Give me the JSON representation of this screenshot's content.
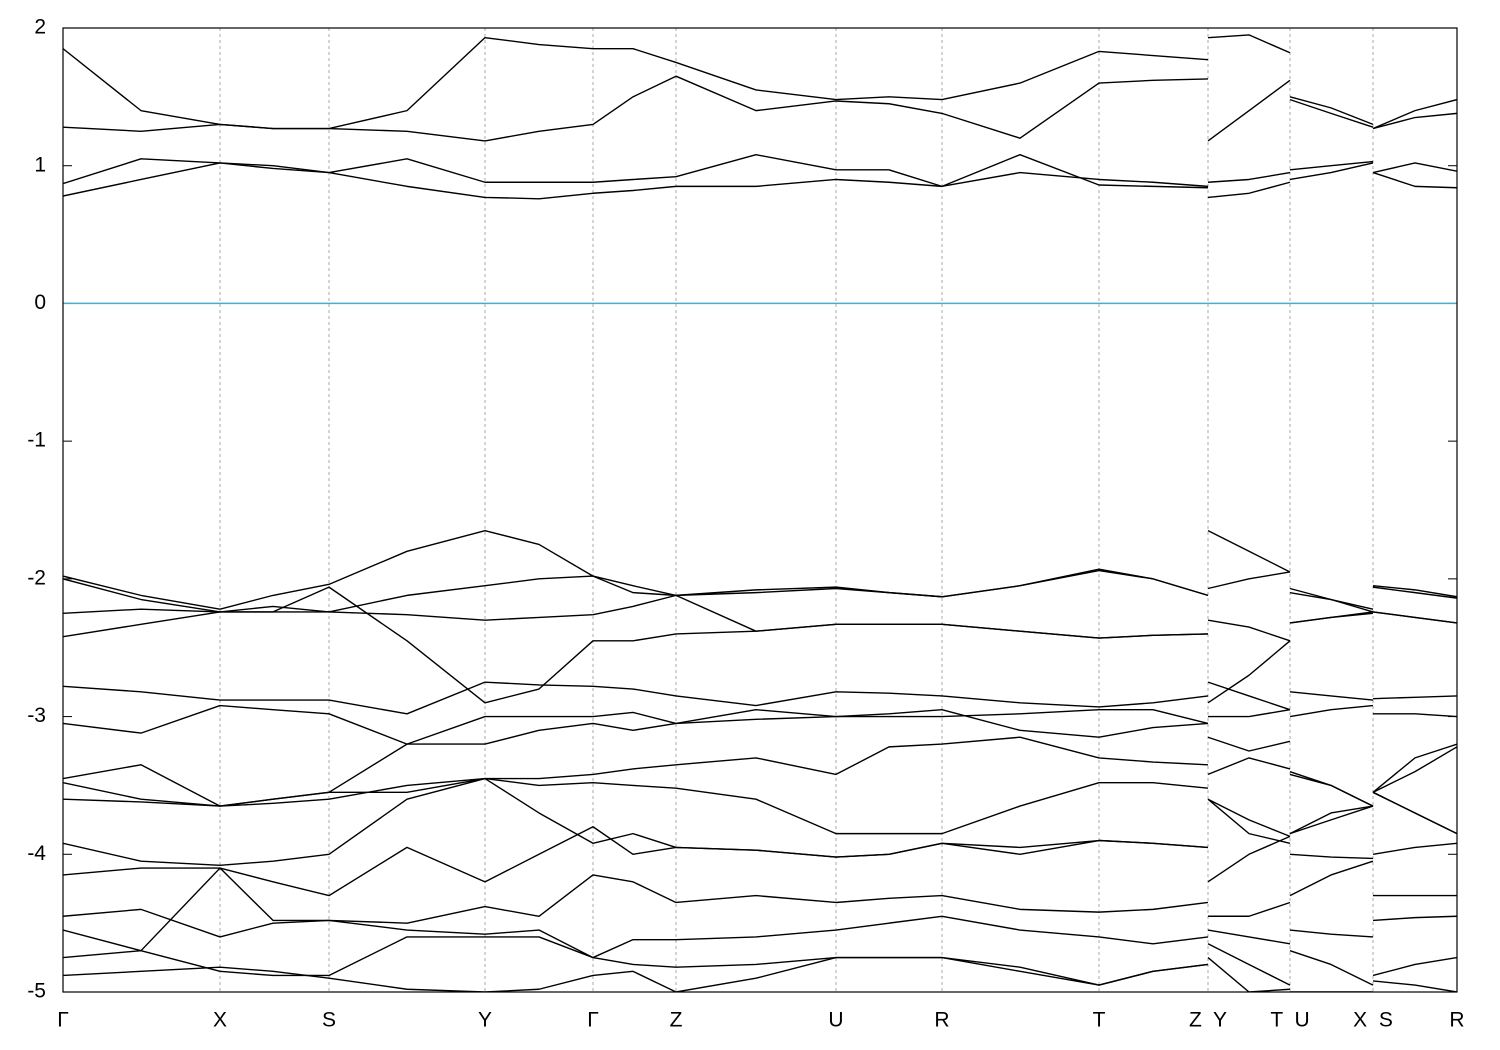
{
  "chart_data": {
    "type": "line",
    "color": "#000000",
    "grid": true,
    "grid_color": "#aaaaaa",
    "hline": {
      "value": 0,
      "color": "#4aaecb"
    },
    "xlim": [
      0,
      13.94
    ],
    "ylim": [
      -5,
      2
    ],
    "xticks": [
      {
        "value": 0,
        "label": "Γ"
      },
      {
        "value": 1.57,
        "label": "X"
      },
      {
        "value": 2.66,
        "label": "S"
      },
      {
        "value": 4.22,
        "label": "Y"
      },
      {
        "value": 5.3,
        "label": "Γ"
      },
      {
        "value": 6.13,
        "label": "Z"
      },
      {
        "value": 7.73,
        "label": "U"
      },
      {
        "value": 8.79,
        "label": "R"
      },
      {
        "value": 10.36,
        "label": "T"
      },
      {
        "value": 11.45,
        "label": "Z  Y"
      },
      {
        "value": 12.27,
        "label": "T  U"
      },
      {
        "value": 13.1,
        "label": "X  S"
      },
      {
        "value": 13.94,
        "label": "R"
      }
    ],
    "yticks": [
      -5,
      -4,
      -3,
      -2,
      -1,
      0,
      1,
      2
    ],
    "x": [
      0,
      0.78,
      1.57,
      2.1,
      2.66,
      3.44,
      4.22,
      4.76,
      5.3,
      5.7,
      6.13,
      6.93,
      7.73,
      8.26,
      8.79,
      9.57,
      10.36,
      10.9,
      11.45,
      11.45,
      11.45,
      11.86,
      12.27,
      12.27,
      12.27,
      12.68,
      13.1,
      13.1,
      13.1,
      13.52,
      13.94
    ],
    "series": [
      {
        "values": [
          0.78,
          0.9,
          1.02,
          0.98,
          0.95,
          0.85,
          0.77,
          0.76,
          0.8,
          0.82,
          0.85,
          0.85,
          0.9,
          0.88,
          0.85,
          0.95,
          0.9,
          0.88,
          0.85,
          null,
          0.77,
          0.8,
          0.88,
          null,
          0.9,
          0.95,
          1.02,
          null,
          0.95,
          0.85,
          0.84
        ]
      },
      {
        "values": [
          0.87,
          1.05,
          1.02,
          1.0,
          0.95,
          1.05,
          0.88,
          0.88,
          0.88,
          0.9,
          0.92,
          1.08,
          0.97,
          0.97,
          0.85,
          1.08,
          0.86,
          0.85,
          0.84,
          null,
          0.88,
          0.9,
          0.95,
          null,
          0.97,
          1.0,
          1.03,
          null,
          0.95,
          1.02,
          0.96
        ]
      },
      {
        "values": [
          1.28,
          1.25,
          1.3,
          1.27,
          1.27,
          1.25,
          1.18,
          1.25,
          1.3,
          1.5,
          1.65,
          1.4,
          1.47,
          1.45,
          1.38,
          1.2,
          1.6,
          1.62,
          1.63,
          null,
          1.18,
          1.4,
          1.62,
          null,
          1.48,
          1.38,
          1.28,
          null,
          1.27,
          1.35,
          1.38
        ]
      },
      {
        "values": [
          1.85,
          1.4,
          1.3,
          1.27,
          1.27,
          1.4,
          1.93,
          1.88,
          1.85,
          1.85,
          1.75,
          1.55,
          1.48,
          1.5,
          1.48,
          1.6,
          1.83,
          1.8,
          1.77,
          null,
          1.93,
          1.95,
          1.82,
          null,
          1.5,
          1.42,
          1.3,
          null,
          1.27,
          1.4,
          1.48
        ]
      },
      {
        "values": [
          -1.98,
          -2.12,
          -2.22,
          -2.12,
          -2.04,
          -1.8,
          -1.65,
          -1.75,
          -1.98,
          -2.1,
          -2.12,
          -2.08,
          -2.06,
          -2.1,
          -2.13,
          -2.05,
          -1.93,
          -2.0,
          -2.12,
          null,
          -1.65,
          -1.8,
          -1.95,
          null,
          -2.07,
          -2.15,
          -2.22,
          null,
          -2.05,
          -2.08,
          -2.13
        ]
      },
      {
        "values": [
          -2.0,
          -2.15,
          -2.24,
          -2.2,
          -2.24,
          -2.12,
          -2.05,
          -2.0,
          -1.98,
          -2.05,
          -2.12,
          -2.1,
          -2.07,
          -2.1,
          -2.13,
          -2.05,
          -1.94,
          -2.0,
          -2.12,
          null,
          -2.07,
          -2.0,
          -1.95,
          null,
          -2.1,
          -2.15,
          -2.24,
          null,
          -2.06,
          -2.1,
          -2.14
        ]
      },
      {
        "values": [
          -2.25,
          -2.22,
          -2.24,
          -2.24,
          -2.24,
          -2.26,
          -2.3,
          -2.28,
          -2.26,
          -2.2,
          -2.12,
          -2.38,
          -2.33,
          -2.33,
          -2.33,
          -2.38,
          -2.43,
          -2.41,
          -2.4,
          null,
          -2.3,
          -2.35,
          -2.45,
          null,
          -2.32,
          -2.28,
          -2.24,
          null,
          -2.24,
          -2.28,
          -2.32
        ]
      },
      {
        "values": [
          -2.42,
          -2.33,
          -2.24,
          -2.24,
          -2.06,
          -2.45,
          -2.9,
          -2.8,
          -2.45,
          -2.45,
          -2.4,
          -2.38,
          -2.33,
          -2.33,
          -2.33,
          -2.38,
          -2.43,
          -2.41,
          -2.4,
          null,
          -2.9,
          -2.7,
          -2.45,
          null,
          -2.32,
          -2.28,
          -2.25,
          null,
          -2.24,
          -2.28,
          -2.32
        ]
      },
      {
        "values": [
          -2.78,
          -2.82,
          -2.88,
          -2.88,
          -2.88,
          -2.98,
          -2.75,
          -2.77,
          -2.78,
          -2.8,
          -2.85,
          -2.92,
          -2.82,
          -2.83,
          -2.85,
          -2.9,
          -2.93,
          -2.9,
          -2.85,
          null,
          -2.75,
          -2.85,
          -2.95,
          null,
          -2.82,
          -2.85,
          -2.88,
          null,
          -2.87,
          -2.86,
          -2.85
        ]
      },
      {
        "values": [
          -3.05,
          -3.12,
          -2.92,
          -2.95,
          -2.98,
          -3.2,
          -3.0,
          -3.0,
          -3.0,
          -2.97,
          -3.05,
          -3.02,
          -3.0,
          -3.0,
          -3.0,
          -2.98,
          -2.95,
          -2.95,
          -3.05,
          null,
          -3.0,
          -3.0,
          -2.95,
          null,
          -3.0,
          -2.95,
          -2.92,
          null,
          -2.98,
          -2.98,
          -3.0
        ]
      },
      {
        "values": [
          -3.45,
          -3.35,
          -3.65,
          -3.6,
          -3.55,
          -3.2,
          -3.2,
          -3.1,
          -3.05,
          -3.1,
          -3.05,
          -2.95,
          -3.0,
          -2.98,
          -2.95,
          -3.1,
          -3.15,
          -3.08,
          -3.05,
          null,
          -3.15,
          -3.25,
          -3.18,
          null,
          -3.4,
          -3.5,
          -3.65,
          null,
          -3.55,
          -3.4,
          -3.22
        ]
      },
      {
        "values": [
          -3.48,
          -3.6,
          -3.65,
          -3.6,
          -3.55,
          -3.55,
          -3.45,
          -3.45,
          -3.42,
          -3.38,
          -3.35,
          -3.3,
          -3.42,
          -3.22,
          -3.2,
          -3.15,
          -3.3,
          -3.33,
          -3.35,
          null,
          -3.42,
          -3.3,
          -3.38,
          null,
          -3.42,
          -3.5,
          -3.65,
          null,
          -3.55,
          -3.7,
          -3.85
        ]
      },
      {
        "values": [
          -3.6,
          -3.62,
          -3.65,
          -3.63,
          -3.6,
          -3.5,
          -3.45,
          -3.5,
          -3.48,
          -3.5,
          -3.52,
          -3.6,
          -3.85,
          -3.85,
          -3.85,
          -3.65,
          -3.48,
          -3.48,
          -3.52,
          null,
          -3.6,
          -3.85,
          -3.92,
          null,
          -3.85,
          -3.75,
          -3.65,
          null,
          -3.55,
          -3.7,
          -3.85
        ]
      },
      {
        "values": [
          -3.92,
          -4.05,
          -4.08,
          -4.05,
          -4.0,
          -3.6,
          -3.45,
          -3.7,
          -3.92,
          -3.85,
          -3.95,
          -3.97,
          -4.02,
          -4.0,
          -3.92,
          -3.95,
          -3.9,
          -3.92,
          -3.95,
          null,
          -4.2,
          -4.0,
          -3.87,
          null,
          -4.0,
          -4.02,
          -4.03,
          null,
          -4.0,
          -3.95,
          -3.92
        ]
      },
      {
        "values": [
          -4.15,
          -4.1,
          -4.1,
          -4.2,
          -4.3,
          -3.95,
          -4.2,
          -4.0,
          -3.8,
          -4.0,
          -3.95,
          -3.97,
          -4.02,
          -4.0,
          -3.92,
          -4.0,
          -3.9,
          -3.92,
          -3.95,
          null,
          -3.6,
          -3.75,
          -3.87,
          null,
          -3.85,
          -3.7,
          -3.65,
          null,
          -3.55,
          -3.3,
          -3.2
        ]
      },
      {
        "values": [
          -4.45,
          -4.4,
          -4.6,
          -4.5,
          -4.48,
          -4.5,
          -4.38,
          -4.45,
          -4.15,
          -4.2,
          -4.35,
          -4.3,
          -4.35,
          -4.32,
          -4.3,
          -4.4,
          -4.42,
          -4.4,
          -4.35,
          null,
          -4.45,
          -4.45,
          -4.35,
          null,
          -4.3,
          -4.15,
          -4.05,
          null,
          -4.3,
          -4.3,
          -4.3
        ]
      },
      {
        "values": [
          -4.55,
          -4.7,
          -4.1,
          -4.48,
          -4.48,
          -4.55,
          -4.58,
          -4.55,
          -4.75,
          -4.62,
          -4.62,
          -4.6,
          -4.55,
          -4.5,
          -4.45,
          -4.55,
          -4.6,
          -4.65,
          -4.6,
          null,
          -4.55,
          -4.6,
          -4.65,
          null,
          -4.55,
          -4.58,
          -4.6,
          null,
          -4.48,
          -4.46,
          -4.45
        ]
      },
      {
        "values": [
          -4.75,
          -4.7,
          -4.85,
          -4.88,
          -4.88,
          -4.6,
          -4.6,
          -4.6,
          -4.75,
          -4.8,
          -4.82,
          -4.8,
          -4.75,
          -4.75,
          -4.75,
          -4.82,
          -4.95,
          -4.85,
          -4.8,
          null,
          -4.65,
          -4.8,
          -4.95,
          null,
          -4.7,
          -4.8,
          -4.95,
          null,
          -4.88,
          -4.8,
          -4.75
        ]
      },
      {
        "values": [
          -4.88,
          -4.85,
          -4.82,
          -4.85,
          -4.9,
          -4.98,
          -5.0,
          -4.98,
          -4.88,
          -4.85,
          -5.0,
          -4.9,
          -4.75,
          -4.75,
          -4.75,
          -4.85,
          -4.95,
          -4.85,
          -4.8,
          null,
          -4.75,
          -5.0,
          -4.98,
          null,
          -5.0,
          -5.0,
          -5.0,
          null,
          -4.92,
          -4.95,
          -5.0
        ]
      }
    ]
  }
}
